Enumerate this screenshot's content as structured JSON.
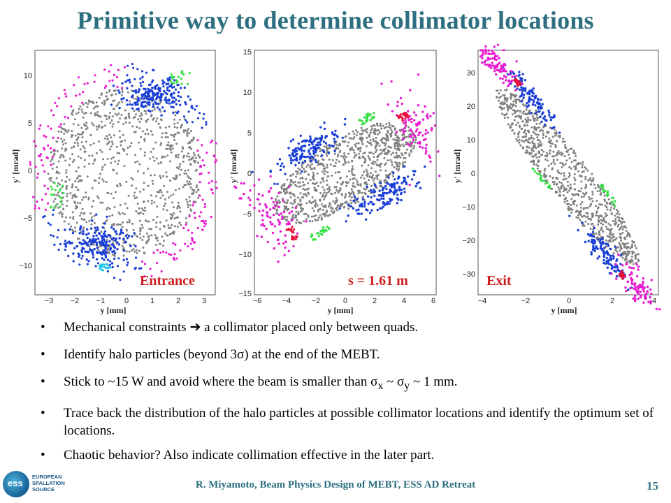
{
  "title": "Primitive way to determine collimator locations",
  "plots": [
    {
      "label": "Entrance",
      "ylabel": "y' [mrad]",
      "xlabel": "y [mm]",
      "xticks": [
        "−3",
        "−2",
        "−1",
        "0",
        "1",
        "2",
        "3"
      ],
      "yticks": [
        "10",
        "5",
        "0",
        "−5",
        "−10"
      ]
    },
    {
      "label": "s = 1.61 m",
      "ylabel": "y' [mrad]",
      "xlabel": "y [mm]",
      "xticks": [
        "−6",
        "−4",
        "−2",
        "0",
        "2",
        "4",
        "6"
      ],
      "yticks": [
        "15",
        "10",
        "5",
        "0",
        "−5",
        "−10",
        "−15"
      ]
    },
    {
      "label": "Exit",
      "ylabel": "y' [mrad]",
      "xlabel": "y [mm]",
      "xticks": [
        "−4",
        "−2",
        "0",
        "2",
        "4"
      ],
      "yticks": [
        "30",
        "20",
        "10",
        "0",
        "−10",
        "−20",
        "−30"
      ]
    }
  ],
  "bullets": [
    {
      "pre": "Mechanical constraints ",
      "arrow": "➔",
      "post": " a collimator placed only between quads."
    },
    {
      "pre": "Identify halo particles (beyond 3σ) at the end of the MEBT."
    },
    {
      "pre": "Stick to ~15 W and avoid where the beam is smaller than σ",
      "sub1": "x",
      "mid": " ~ σ",
      "sub2": "y",
      "post": " ~ 1 mm."
    },
    {
      "pre": "Trace back the distribution of the halo particles at possible collimator locations and identify the optimum set of locations."
    },
    {
      "pre": "Chaotic behavior?  Also indicate collimation effective in the later part."
    }
  ],
  "bullet_symbol": "•",
  "footer": "R. Miyamoto, Beam Physics Design of MEBT, ESS AD Retreat",
  "page_number": "15",
  "logo": {
    "mark": "ess",
    "line1": "EUROPEAN",
    "line2": "SPALLATION",
    "line3": "SOURCE"
  },
  "colors": {
    "title": "#2d6f80",
    "label_red": "#cc1f1f",
    "core": "#808080",
    "halo_blue": "#1a3fd6",
    "halo_magenta": "#e81bd0",
    "halo_red": "#e8103a",
    "halo_green": "#34e044",
    "halo_cyan": "#22c6e8"
  }
}
